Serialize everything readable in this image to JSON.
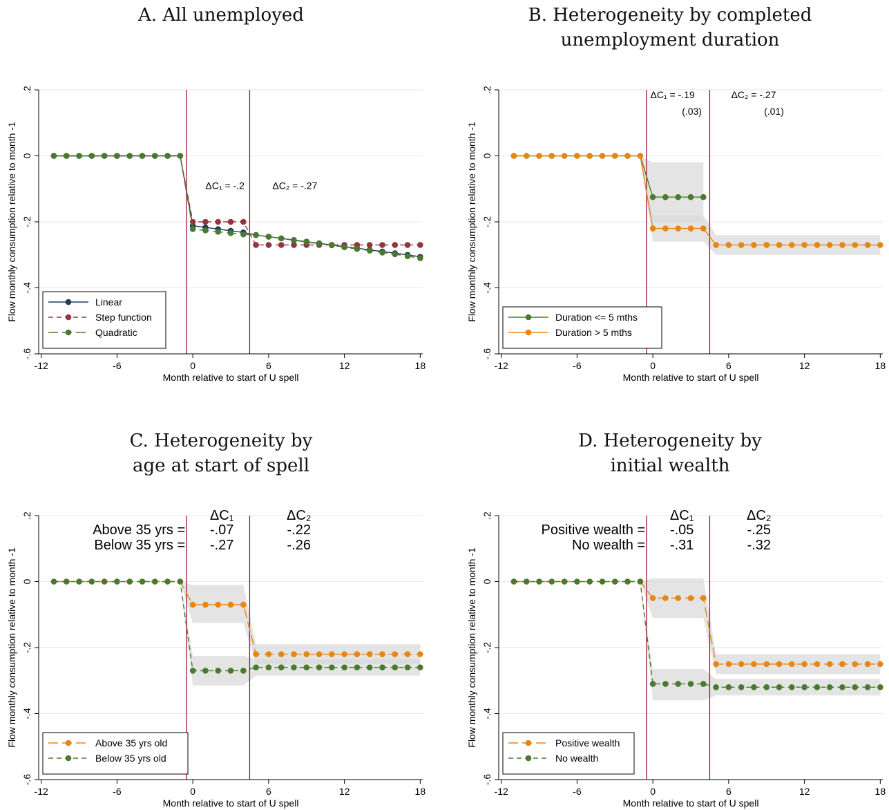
{
  "axis_labels": {
    "xlabel": "Month relative to start of U spell",
    "ylabel": "Flow monthly consumption relative to month -1"
  },
  "chart_data": [
    {
      "panel": "A",
      "title": "A. All unemployed",
      "type": "line",
      "xticks": [
        -12,
        -6,
        0,
        6,
        12,
        18
      ],
      "yticks": [
        "0",
        "-.2",
        "-.4",
        "-.6",
        ".2"
      ],
      "ytick_values": [
        0,
        -0.2,
        -0.4,
        -0.6,
        0.2
      ],
      "xlim": [
        -12,
        18
      ],
      "ylim": [
        -0.6,
        0.2
      ],
      "vlines": [
        -0.5,
        4.5
      ],
      "x": [
        -11,
        -10,
        -9,
        -8,
        -7,
        -6,
        -5,
        -4,
        -3,
        -2,
        -1,
        0,
        1,
        2,
        3,
        4,
        5,
        6,
        7,
        8,
        9,
        10,
        11,
        12,
        13,
        14,
        15,
        16,
        17,
        18
      ],
      "series": [
        {
          "name": "Linear",
          "color": "#1f3b5e",
          "dash": "solid",
          "values": [
            0,
            0,
            0,
            0,
            0,
            0,
            0,
            0,
            0,
            0,
            0,
            -0.212,
            -0.217,
            -0.222,
            -0.227,
            -0.232,
            -0.24,
            -0.245,
            -0.25,
            -0.255,
            -0.26,
            -0.265,
            -0.27,
            -0.275,
            -0.28,
            -0.285,
            -0.29,
            -0.295,
            -0.3,
            -0.306
          ]
        },
        {
          "name": "Step function",
          "color": "#93353e",
          "dash": "dashed",
          "values": [
            0,
            0,
            0,
            0,
            0,
            0,
            0,
            0,
            0,
            0,
            0,
            -0.2,
            -0.2,
            -0.2,
            -0.2,
            -0.2,
            -0.27,
            -0.27,
            -0.27,
            -0.27,
            -0.27,
            -0.27,
            -0.27,
            -0.27,
            -0.27,
            -0.27,
            -0.27,
            -0.27,
            -0.27,
            -0.27
          ]
        },
        {
          "name": "Quadratic",
          "color": "#4a7a2e",
          "dash": "longdash",
          "values": [
            0,
            0,
            0,
            0,
            0,
            0,
            0,
            0,
            0,
            0,
            0,
            -0.222,
            -0.226,
            -0.23,
            -0.234,
            -0.238,
            -0.24,
            -0.245,
            -0.25,
            -0.256,
            -0.261,
            -0.266,
            -0.271,
            -0.277,
            -0.282,
            -0.287,
            -0.293,
            -0.298,
            -0.304,
            -0.31
          ]
        }
      ],
      "annotations": [
        {
          "text": "ΔC₁ = -.2",
          "x": 1.0,
          "y": -0.1
        },
        {
          "text": "ΔC₂ = -.27",
          "x": 6.3,
          "y": -0.1
        }
      ],
      "legend": "bottom-left"
    },
    {
      "panel": "B",
      "title": "B. Heterogeneity by completed\nunemployment duration",
      "type": "line",
      "xticks": [
        -12,
        -6,
        0,
        6,
        12,
        18
      ],
      "yticks": [
        "0",
        "-.2",
        "-.4",
        "-.6",
        ".2"
      ],
      "ytick_values": [
        0,
        -0.2,
        -0.4,
        -0.6,
        0.2
      ],
      "xlim": [
        -12,
        18
      ],
      "ylim": [
        -0.6,
        0.2
      ],
      "vlines": [
        -0.5,
        4.5
      ],
      "x": [
        -11,
        -10,
        -9,
        -8,
        -7,
        -6,
        -5,
        -4,
        -3,
        -2,
        -1,
        0,
        1,
        2,
        3,
        4,
        5,
        6,
        7,
        8,
        9,
        10,
        11,
        12,
        13,
        14,
        15,
        16,
        17,
        18
      ],
      "series": [
        {
          "name": "Duration <= 5 mths",
          "color": "#4a7a2e",
          "dash": "solid",
          "values": [
            0,
            0,
            0,
            0,
            0,
            0,
            0,
            0,
            0,
            0,
            0,
            -0.125,
            -0.125,
            -0.125,
            -0.125,
            -0.125,
            null,
            null,
            null,
            null,
            null,
            null,
            null,
            null,
            null,
            null,
            null,
            null,
            null,
            null
          ],
          "ci": [
            [
              0,
              0,
              0,
              0,
              0,
              0,
              0,
              0,
              0,
              0,
              0,
              -0.2,
              -0.2,
              -0.2,
              -0.2,
              -0.2,
              null,
              null,
              null,
              null,
              null,
              null,
              null,
              null,
              null,
              null,
              null,
              null,
              null,
              null
            ],
            [
              0,
              0,
              0,
              0,
              0,
              0,
              0,
              0,
              0,
              0,
              0,
              -0.02,
              -0.02,
              -0.02,
              -0.02,
              -0.02,
              null,
              null,
              null,
              null,
              null,
              null,
              null,
              null,
              null,
              null,
              null,
              null,
              null,
              null
            ]
          ]
        },
        {
          "name": "Duration > 5 mths",
          "color": "#e68613",
          "dash": "solid",
          "values": [
            0,
            0,
            0,
            0,
            0,
            0,
            0,
            0,
            0,
            0,
            0,
            -0.22,
            -0.22,
            -0.22,
            -0.22,
            -0.22,
            -0.27,
            -0.27,
            -0.27,
            -0.27,
            -0.27,
            -0.27,
            -0.27,
            -0.27,
            -0.27,
            -0.27,
            -0.27,
            -0.27,
            -0.27,
            -0.27
          ],
          "ci": [
            [
              0,
              0,
              0,
              0,
              0,
              0,
              0,
              0,
              0,
              0,
              0,
              -0.26,
              -0.26,
              -0.26,
              -0.26,
              -0.26,
              -0.3,
              -0.3,
              -0.3,
              -0.3,
              -0.3,
              -0.3,
              -0.3,
              -0.3,
              -0.3,
              -0.3,
              -0.3,
              -0.3,
              -0.3,
              -0.3
            ],
            [
              0,
              0,
              0,
              0,
              0,
              0,
              0,
              0,
              0,
              0,
              0,
              -0.18,
              -0.18,
              -0.18,
              -0.18,
              -0.18,
              -0.24,
              -0.24,
              -0.24,
              -0.24,
              -0.24,
              -0.24,
              -0.24,
              -0.24,
              -0.24,
              -0.24,
              -0.24,
              -0.24,
              -0.24,
              -0.24
            ]
          ]
        }
      ],
      "annotations": [
        {
          "text": "ΔC₁ = -.19",
          "x": -0.2,
          "y": 0.175
        },
        {
          "text": "(.03)",
          "x": 2.3,
          "y": 0.125
        },
        {
          "text": "ΔC₂ = -.27",
          "x": 6.2,
          "y": 0.175
        },
        {
          "text": "(.01)",
          "x": 8.8,
          "y": 0.125
        }
      ],
      "legend": "bottom-left"
    },
    {
      "panel": "C",
      "title": "C. Heterogeneity by\nage at start of spell",
      "type": "line",
      "xticks": [
        -12,
        -6,
        0,
        6,
        12,
        18
      ],
      "yticks": [
        "0",
        "-.2",
        "-.4",
        "-.6",
        ".2"
      ],
      "ytick_values": [
        0,
        -0.2,
        -0.4,
        -0.6,
        0.2
      ],
      "xlim": [
        -12,
        18
      ],
      "ylim": [
        -0.6,
        0.2
      ],
      "vlines": [
        -0.5,
        4.5
      ],
      "x": [
        -11,
        -10,
        -9,
        -8,
        -7,
        -6,
        -5,
        -4,
        -3,
        -2,
        -1,
        0,
        1,
        2,
        3,
        4,
        5,
        6,
        7,
        8,
        9,
        10,
        11,
        12,
        13,
        14,
        15,
        16,
        17,
        18
      ],
      "series": [
        {
          "name": "Above 35 yrs old",
          "color": "#e68613",
          "dash": "longdash",
          "values": [
            0,
            0,
            0,
            0,
            0,
            0,
            0,
            0,
            0,
            0,
            0,
            -0.07,
            -0.07,
            -0.07,
            -0.07,
            -0.07,
            -0.22,
            -0.22,
            -0.22,
            -0.22,
            -0.22,
            -0.22,
            -0.22,
            -0.22,
            -0.22,
            -0.22,
            -0.22,
            -0.22,
            -0.22,
            -0.22
          ],
          "ci": [
            [
              0,
              0,
              0,
              0,
              0,
              0,
              0,
              0,
              0,
              0,
              0,
              -0.125,
              -0.125,
              -0.125,
              -0.125,
              -0.125,
              -0.25,
              -0.25,
              -0.25,
              -0.25,
              -0.25,
              -0.25,
              -0.25,
              -0.25,
              -0.25,
              -0.25,
              -0.25,
              -0.25,
              -0.25,
              -0.25
            ],
            [
              0,
              0,
              0,
              0,
              0,
              0,
              0,
              0,
              0,
              0,
              0,
              -0.01,
              -0.01,
              -0.01,
              -0.01,
              -0.01,
              -0.19,
              -0.19,
              -0.19,
              -0.19,
              -0.19,
              -0.19,
              -0.19,
              -0.19,
              -0.19,
              -0.19,
              -0.19,
              -0.19,
              -0.19,
              -0.19
            ]
          ]
        },
        {
          "name": "Below 35 yrs old",
          "color": "#4a7a2e",
          "dash": "dashed",
          "values": [
            0,
            0,
            0,
            0,
            0,
            0,
            0,
            0,
            0,
            0,
            0,
            -0.27,
            -0.27,
            -0.27,
            -0.27,
            -0.27,
            -0.26,
            -0.26,
            -0.26,
            -0.26,
            -0.26,
            -0.26,
            -0.26,
            -0.26,
            -0.26,
            -0.26,
            -0.26,
            -0.26,
            -0.26,
            -0.26
          ],
          "ci": [
            [
              0,
              0,
              0,
              0,
              0,
              0,
              0,
              0,
              0,
              0,
              0,
              -0.315,
              -0.315,
              -0.315,
              -0.315,
              -0.315,
              -0.285,
              -0.285,
              -0.285,
              -0.285,
              -0.285,
              -0.285,
              -0.285,
              -0.285,
              -0.285,
              -0.285,
              -0.285,
              -0.285,
              -0.285,
              -0.285
            ],
            [
              0,
              0,
              0,
              0,
              0,
              0,
              0,
              0,
              0,
              0,
              0,
              -0.225,
              -0.225,
              -0.225,
              -0.225,
              -0.225,
              -0.235,
              -0.235,
              -0.235,
              -0.235,
              -0.235,
              -0.235,
              -0.235,
              -0.235,
              -0.235,
              -0.235,
              -0.235,
              -0.235,
              -0.235,
              -0.235
            ]
          ]
        }
      ],
      "table": {
        "headers": [
          "ΔC₁",
          "ΔC₂"
        ],
        "rows": [
          {
            "label": "Above 35 yrs =",
            "values": [
              "-.07",
              "-.22"
            ]
          },
          {
            "label": "Below 35 yrs =",
            "values": [
              "-.27",
              "-.26"
            ]
          }
        ]
      },
      "legend": "bottom-left"
    },
    {
      "panel": "D",
      "title": "D. Heterogeneity by\ninitial wealth",
      "type": "line",
      "xticks": [
        -12,
        -6,
        0,
        6,
        12,
        18
      ],
      "yticks": [
        "0",
        "-.2",
        "-.4",
        "-.6",
        ".2"
      ],
      "ytick_values": [
        0,
        -0.2,
        -0.4,
        -0.6,
        0.2
      ],
      "xlim": [
        -12,
        18
      ],
      "ylim": [
        -0.6,
        0.2
      ],
      "vlines": [
        -0.5,
        4.5
      ],
      "x": [
        -11,
        -10,
        -9,
        -8,
        -7,
        -6,
        -5,
        -4,
        -3,
        -2,
        -1,
        0,
        1,
        2,
        3,
        4,
        5,
        6,
        7,
        8,
        9,
        10,
        11,
        12,
        13,
        14,
        15,
        16,
        17,
        18
      ],
      "series": [
        {
          "name": "Positive wealth",
          "color": "#e68613",
          "dash": "longdash",
          "values": [
            0,
            0,
            0,
            0,
            0,
            0,
            0,
            0,
            0,
            0,
            0,
            -0.05,
            -0.05,
            -0.05,
            -0.05,
            -0.05,
            -0.25,
            -0.25,
            -0.25,
            -0.25,
            -0.25,
            -0.25,
            -0.25,
            -0.25,
            -0.25,
            -0.25,
            -0.25,
            -0.25,
            -0.25,
            -0.25
          ],
          "ci": [
            [
              0,
              0,
              0,
              0,
              0,
              0,
              0,
              0,
              0,
              0,
              0,
              -0.11,
              -0.11,
              -0.11,
              -0.11,
              -0.11,
              -0.28,
              -0.28,
              -0.28,
              -0.28,
              -0.28,
              -0.28,
              -0.28,
              -0.28,
              -0.28,
              -0.28,
              -0.28,
              -0.28,
              -0.28,
              -0.28
            ],
            [
              0,
              0,
              0,
              0,
              0,
              0,
              0,
              0,
              0,
              0,
              0,
              0.01,
              0.01,
              0.01,
              0.01,
              0.01,
              -0.22,
              -0.22,
              -0.22,
              -0.22,
              -0.22,
              -0.22,
              -0.22,
              -0.22,
              -0.22,
              -0.22,
              -0.22,
              -0.22,
              -0.22,
              -0.22
            ]
          ]
        },
        {
          "name": "No wealth",
          "color": "#4a7a2e",
          "dash": "dashed",
          "values": [
            0,
            0,
            0,
            0,
            0,
            0,
            0,
            0,
            0,
            0,
            0,
            -0.31,
            -0.31,
            -0.31,
            -0.31,
            -0.31,
            -0.32,
            -0.32,
            -0.32,
            -0.32,
            -0.32,
            -0.32,
            -0.32,
            -0.32,
            -0.32,
            -0.32,
            -0.32,
            -0.32,
            -0.32,
            -0.32
          ],
          "ci": [
            [
              0,
              0,
              0,
              0,
              0,
              0,
              0,
              0,
              0,
              0,
              0,
              -0.36,
              -0.36,
              -0.36,
              -0.36,
              -0.36,
              -0.345,
              -0.345,
              -0.345,
              -0.345,
              -0.345,
              -0.345,
              -0.345,
              -0.345,
              -0.345,
              -0.345,
              -0.345,
              -0.345,
              -0.345,
              -0.345
            ],
            [
              0,
              0,
              0,
              0,
              0,
              0,
              0,
              0,
              0,
              0,
              0,
              -0.265,
              -0.265,
              -0.265,
              -0.265,
              -0.265,
              -0.295,
              -0.295,
              -0.295,
              -0.295,
              -0.295,
              -0.295,
              -0.295,
              -0.295,
              -0.295,
              -0.295,
              -0.295,
              -0.295,
              -0.295,
              -0.295
            ]
          ]
        }
      ],
      "table": {
        "headers": [
          "ΔC₁",
          "ΔC₂"
        ],
        "rows": [
          {
            "label": "Positive wealth =",
            "values": [
              "-.05",
              "-.25"
            ]
          },
          {
            "label": "No wealth =",
            "values": [
              "-.31",
              "-.32"
            ]
          }
        ]
      },
      "legend": "bottom-left"
    }
  ]
}
